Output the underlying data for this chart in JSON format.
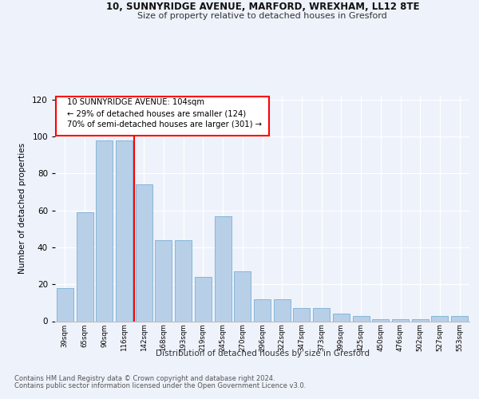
{
  "title1": "10, SUNNYRIDGE AVENUE, MARFORD, WREXHAM, LL12 8TE",
  "title2": "Size of property relative to detached houses in Gresford",
  "xlabel": "Distribution of detached houses by size in Gresford",
  "ylabel": "Number of detached properties",
  "categories": [
    "39sqm",
    "65sqm",
    "90sqm",
    "116sqm",
    "142sqm",
    "168sqm",
    "193sqm",
    "219sqm",
    "245sqm",
    "270sqm",
    "296sqm",
    "322sqm",
    "347sqm",
    "373sqm",
    "399sqm",
    "425sqm",
    "450sqm",
    "476sqm",
    "502sqm",
    "527sqm",
    "553sqm"
  ],
  "values": [
    18,
    59,
    98,
    98,
    74,
    44,
    44,
    24,
    57,
    27,
    12,
    12,
    7,
    7,
    4,
    3,
    1,
    1,
    1,
    3,
    3
  ],
  "bar_color": "#b8cfe8",
  "bar_edge_color": "#7aafd4",
  "red_line_index": 3,
  "annotation_lines": [
    "10 SUNNYRIDGE AVENUE: 104sqm",
    "← 29% of detached houses are smaller (124)",
    "70% of semi-detached houses are larger (301) →"
  ],
  "footnote1": "Contains HM Land Registry data © Crown copyright and database right 2024.",
  "footnote2": "Contains public sector information licensed under the Open Government Licence v3.0.",
  "background_color": "#eef2fb",
  "plot_bg_color": "#eef2fb",
  "ylim": [
    0,
    122
  ],
  "yticks": [
    0,
    20,
    40,
    60,
    80,
    100,
    120
  ]
}
